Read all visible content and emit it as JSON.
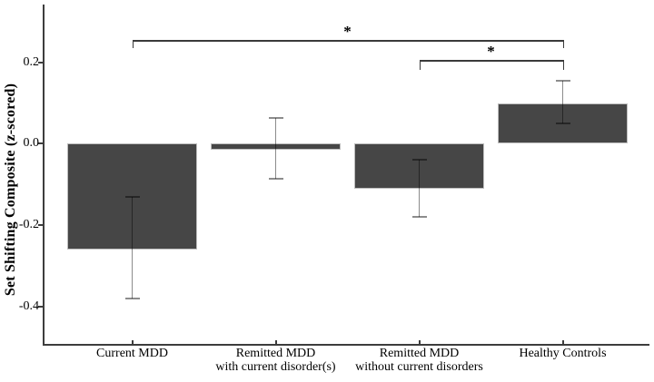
{
  "figure": {
    "background_color": "#ffffff",
    "axis_color": "#3d3d3d",
    "text_color": "#000000"
  },
  "chart_data": {
    "type": "bar",
    "title": "",
    "xlabel": "",
    "ylabel": "Set Shifting Composite (z-scored)",
    "ylim": [
      -0.492,
      0.342
    ],
    "yticks": [
      0.2,
      0.0,
      -0.2,
      -0.4
    ],
    "ytick_labels": [
      "0.2",
      "0.0",
      "-0.2",
      "-0.4"
    ],
    "grid": false,
    "legend_position": "none",
    "bar_fill_color": "#464646",
    "bar_border_color": "#bdbdbd",
    "error_bar_color": "rgba(0,0,0,0.45)",
    "categories": [
      {
        "lines": [
          "Current MDD"
        ]
      },
      {
        "lines": [
          "Remitted MDD",
          "with current disorder(s)"
        ]
      },
      {
        "lines": [
          "Remitted MDD",
          "without current disorders"
        ]
      },
      {
        "lines": [
          "Healthy Controls"
        ]
      }
    ],
    "series": [
      {
        "name": "Set Shifting Composite (z-scored)",
        "values": [
          -0.26,
          -0.015,
          -0.11,
          0.1
        ],
        "ci_low": [
          -0.38,
          -0.087,
          -0.18,
          0.05
        ],
        "ci_high": [
          -0.13,
          0.063,
          -0.04,
          0.155
        ]
      }
    ],
    "significance_brackets": [
      {
        "from_category": 0,
        "to_category": 3,
        "label": "*",
        "y": 0.255,
        "tick_drop_to": 0.234
      },
      {
        "from_category": 2,
        "to_category": 3,
        "label": "*",
        "y": 0.205,
        "tick_drop_to": 0.181
      }
    ]
  }
}
